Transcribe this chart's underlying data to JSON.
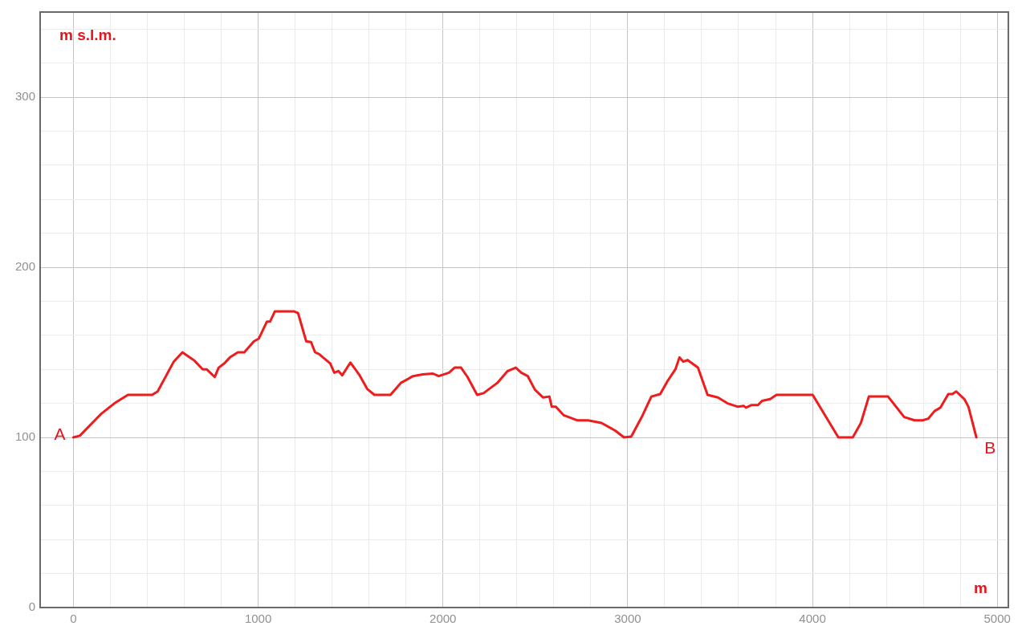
{
  "chart_data": {
    "type": "line",
    "xlabel": "m",
    "ylabel": "m s.l.m.",
    "xlim": [
      -180,
      5060
    ],
    "ylim": [
      0,
      350
    ],
    "xticks": [
      0,
      {
        "value": 200,
        "label": null
      },
      {
        "value": 400,
        "label": null
      },
      {
        "value": 600,
        "label": null
      },
      {
        "value": 800,
        "label": null
      },
      1000,
      {
        "value": 1200,
        "label": null
      },
      {
        "value": 1400,
        "label": null
      },
      {
        "value": 1600,
        "label": null
      },
      {
        "value": 1800,
        "label": null
      },
      2000,
      {
        "value": 2200,
        "label": null
      },
      {
        "value": 2400,
        "label": null
      },
      {
        "value": 2600,
        "label": null
      },
      {
        "value": 2800,
        "label": null
      },
      3000,
      {
        "value": 3200,
        "label": null
      },
      {
        "value": 3400,
        "label": null
      },
      {
        "value": 3600,
        "label": null
      },
      {
        "value": 3800,
        "label": null
      },
      4000,
      {
        "value": 4200,
        "label": null
      },
      {
        "value": 4400,
        "label": null
      },
      {
        "value": 4600,
        "label": null
      },
      {
        "value": 4800,
        "label": null
      },
      5000
    ],
    "yticks": [
      0,
      {
        "value": 20,
        "label": null
      },
      {
        "value": 40,
        "label": null
      },
      {
        "value": 60,
        "label": null
      },
      {
        "value": 80,
        "label": null
      },
      100,
      {
        "value": 120,
        "label": null
      },
      {
        "value": 140,
        "label": null
      },
      {
        "value": 160,
        "label": null
      },
      {
        "value": 180,
        "label": null
      },
      200,
      {
        "value": 220,
        "label": null
      },
      {
        "value": 240,
        "label": null
      },
      {
        "value": 260,
        "label": null
      },
      {
        "value": 280,
        "label": null
      },
      300,
      {
        "value": 320,
        "label": null
      },
      {
        "value": 340,
        "label": null
      }
    ],
    "grid": true,
    "legend": false,
    "marker": "none",
    "line_style": "solid",
    "annotations": [
      {
        "text": "A",
        "x": 0,
        "y": 100
      },
      {
        "text": "B",
        "x": 4887,
        "y": 100
      }
    ],
    "series": [
      {
        "color": "#ee1c1c",
        "x": [
          0,
          35,
          152,
          222,
          295,
          426,
          456,
          543,
          590,
          656,
          700,
          721,
          765,
          786,
          817,
          847,
          890,
          925,
          977,
          1003,
          1047,
          1064,
          1090,
          1195,
          1216,
          1260,
          1286,
          1308,
          1329,
          1390,
          1412,
          1434,
          1455,
          1499,
          1546,
          1590,
          1629,
          1716,
          1772,
          1838,
          1890,
          1946,
          1977,
          2033,
          2063,
          2098,
          2133,
          2185,
          2220,
          2294,
          2350,
          2394,
          2424,
          2459,
          2498,
          2541,
          2576,
          2589,
          2611,
          2654,
          2728,
          2785,
          2858,
          2932,
          2980,
          3019,
          3076,
          3128,
          3176,
          3215,
          3258,
          3280,
          3301,
          3323,
          3380,
          3432,
          3488,
          3540,
          3597,
          3627,
          3640,
          3671,
          3705,
          3727,
          3771,
          3805,
          4001,
          4140,
          4218,
          4262,
          4305,
          4409,
          4496,
          4553,
          4596,
          4626,
          4661,
          4692,
          4735,
          4757,
          4778,
          4822,
          4844,
          4887
        ],
        "values": [
          100,
          101,
          114,
          120,
          125,
          125,
          127,
          144.5,
          150,
          145,
          140,
          140,
          135.5,
          141,
          143.5,
          147,
          150,
          150,
          156.5,
          158,
          168,
          168,
          174,
          174,
          173,
          156.5,
          156,
          150,
          149,
          143.5,
          138,
          139,
          136.5,
          144,
          137,
          128.5,
          125,
          125,
          132,
          136,
          137,
          137.5,
          136,
          138,
          141,
          141,
          135.5,
          125,
          126,
          132,
          139,
          141,
          138,
          136,
          128,
          123.5,
          124,
          118,
          118,
          113,
          110,
          110,
          108.5,
          104,
          100,
          100.5,
          112,
          124,
          125.5,
          133,
          140,
          147,
          144.5,
          145.5,
          141,
          125,
          123.5,
          120,
          118,
          118.5,
          117.5,
          119,
          119,
          121.5,
          122.5,
          125,
          125,
          100,
          100,
          108.5,
          124,
          124,
          112,
          110,
          110,
          111,
          115.5,
          117.5,
          125.5,
          125.5,
          127,
          122.5,
          118,
          100
        ]
      }
    ]
  }
}
